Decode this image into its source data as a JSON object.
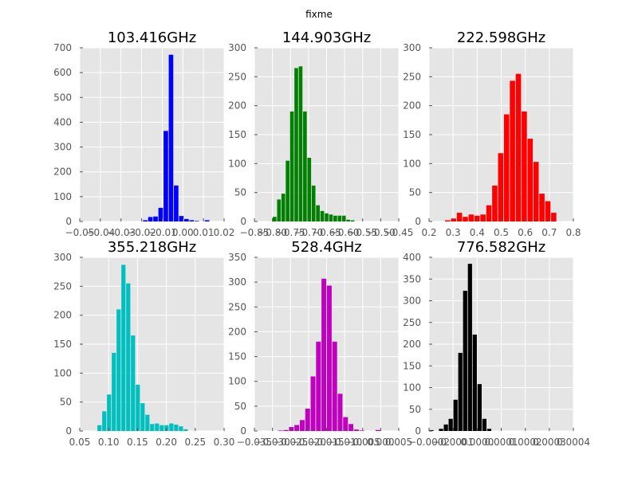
{
  "figure": {
    "suptitle": "fixme",
    "background": "#ffffff",
    "plot_background": "#e5e5e5",
    "grid_color": "#ffffff"
  },
  "chart_data": [
    {
      "type": "bar",
      "title": "103.416GHz",
      "color": "#0000ff",
      "grid": true,
      "xlim": [
        -0.05,
        0.02
      ],
      "ylim": [
        0,
        700
      ],
      "x_ticks": [
        "−0.05",
        "−0.04",
        "−0.03",
        "−0.02",
        "−0.01",
        "0.00",
        "0.01",
        "0.02"
      ],
      "y_ticks": [
        "0",
        "100",
        "200",
        "300",
        "400",
        "500",
        "600",
        "700"
      ],
      "bin_edges": [
        -0.0195,
        -0.017,
        -0.0145,
        -0.012,
        -0.0095,
        -0.007,
        -0.0045,
        -0.002,
        0.0005,
        0.003,
        0.0055,
        0.008,
        0.0105,
        0.013
      ],
      "values": [
        5,
        18,
        20,
        55,
        365,
        672,
        145,
        22,
        10,
        5,
        2,
        0,
        5
      ]
    },
    {
      "type": "bar",
      "title": "144.903GHz",
      "color": "#008000",
      "grid": true,
      "xlim": [
        -0.85,
        -0.45
      ],
      "ylim": [
        0,
        300
      ],
      "x_ticks": [
        "−0.85",
        "−0.80",
        "−0.75",
        "−0.70",
        "−0.65",
        "−0.60",
        "−0.55",
        "−0.50",
        "−0.45"
      ],
      "y_ticks": [
        "0",
        "50",
        "100",
        "150",
        "200",
        "250",
        "300"
      ],
      "bin_edges": [
        -0.8,
        -0.788,
        -0.776,
        -0.764,
        -0.752,
        -0.74,
        -0.728,
        -0.716,
        -0.704,
        -0.692,
        -0.68,
        -0.668,
        -0.656,
        -0.644,
        -0.632,
        -0.62,
        -0.608,
        -0.596,
        -0.584,
        -0.572,
        -0.56,
        -0.548,
        -0.536,
        -0.524,
        -0.512
      ],
      "values": [
        8,
        38,
        48,
        105,
        190,
        265,
        268,
        190,
        110,
        62,
        28,
        18,
        14,
        12,
        10,
        10,
        10,
        3,
        2,
        0,
        0,
        0,
        0,
        0
      ]
    },
    {
      "type": "bar",
      "title": "222.598GHz",
      "color": "#ff0000",
      "grid": true,
      "xlim": [
        0.2,
        0.8
      ],
      "ylim": [
        0,
        300
      ],
      "x_ticks": [
        "0.2",
        "0.3",
        "0.4",
        "0.5",
        "0.6",
        "0.7",
        "0.8"
      ],
      "y_ticks": [
        "0",
        "50",
        "100",
        "150",
        "200",
        "250",
        "300"
      ],
      "bin_edges": [
        0.265,
        0.2895,
        0.314,
        0.3385,
        0.363,
        0.3875,
        0.412,
        0.4365,
        0.461,
        0.4855,
        0.51,
        0.5345,
        0.559,
        0.5835,
        0.608,
        0.6325,
        0.657,
        0.6815,
        0.706,
        0.7305,
        0.755
      ],
      "values": [
        2,
        5,
        15,
        8,
        12,
        10,
        12,
        28,
        62,
        118,
        185,
        243,
        255,
        190,
        143,
        103,
        48,
        35,
        15,
        0
      ]
    },
    {
      "type": "bar",
      "title": "355.218GHz",
      "color": "#00bfbf",
      "grid": true,
      "xlim": [
        0.05,
        0.3
      ],
      "ylim": [
        0,
        300
      ],
      "x_ticks": [
        "0.05",
        "0.10",
        "0.15",
        "0.20",
        "0.25",
        "0.30"
      ],
      "y_ticks": [
        "0",
        "50",
        "100",
        "150",
        "200",
        "250",
        "300"
      ],
      "bin_edges": [
        0.08,
        0.0883,
        0.0966,
        0.1049,
        0.1132,
        0.1215,
        0.1298,
        0.1381,
        0.1464,
        0.1547,
        0.163,
        0.1713,
        0.1796,
        0.1879,
        0.1962,
        0.2045,
        0.2128,
        0.2211,
        0.2294,
        0.2377,
        0.246
      ],
      "values": [
        10,
        34,
        63,
        135,
        210,
        287,
        255,
        165,
        80,
        48,
        28,
        12,
        13,
        10,
        10,
        13,
        11,
        8,
        3,
        0
      ]
    },
    {
      "type": "bar",
      "title": "528.4GHz",
      "color": "#bf00bf",
      "grid": true,
      "xlim": [
        -0.035,
        0.005
      ],
      "ylim": [
        0,
        350
      ],
      "x_ticks": [
        "−0.035",
        "−0.030",
        "−0.025",
        "−0.020",
        "−0.015",
        "−0.010",
        "−0.005",
        "0.000",
        "0.005"
      ],
      "y_ticks": [
        "0",
        "50",
        "100",
        "150",
        "200",
        "250",
        "300",
        "350"
      ],
      "bin_edges": [
        -0.0285,
        -0.027,
        -0.0255,
        -0.024,
        -0.0225,
        -0.021,
        -0.0195,
        -0.018,
        -0.0165,
        -0.015,
        -0.0135,
        -0.012,
        -0.0105,
        -0.009,
        -0.0075,
        -0.006,
        -0.0045,
        -0.003,
        -0.0015,
        0.0,
        0.0015
      ],
      "values": [
        1,
        2,
        8,
        12,
        22,
        45,
        110,
        180,
        307,
        293,
        180,
        75,
        28,
        14,
        3,
        1,
        0,
        0,
        2,
        0
      ]
    },
    {
      "type": "bar",
      "title": "776.582GHz",
      "color": "#000000",
      "grid": true,
      "xlim": [
        -0.0002,
        0.0004
      ],
      "ylim": [
        0,
        400
      ],
      "x_ticks": [
        "−0.0002",
        "−0.0001",
        "0.0000",
        "0.0001",
        "0.0002",
        "0.0003",
        "0.0004"
      ],
      "y_ticks": [
        "0",
        "50",
        "100",
        "150",
        "200",
        "250",
        "300",
        "350",
        "400"
      ],
      "bin_edges": [
        -0.0002,
        -0.00018,
        -0.00016,
        -0.00014,
        -0.00012,
        -0.0001,
        -8e-05,
        -6e-05,
        -4e-05,
        -2e-05,
        0.0,
        2e-05,
        4e-05,
        6e-05,
        8e-05,
        0.0001,
        0.00012,
        0.00014,
        0.00016,
        0.00018,
        0.0002
      ],
      "values": [
        2,
        0,
        5,
        15,
        28,
        72,
        180,
        323,
        385,
        222,
        108,
        28,
        5,
        0,
        0,
        0,
        0,
        0,
        0,
        0
      ]
    }
  ]
}
